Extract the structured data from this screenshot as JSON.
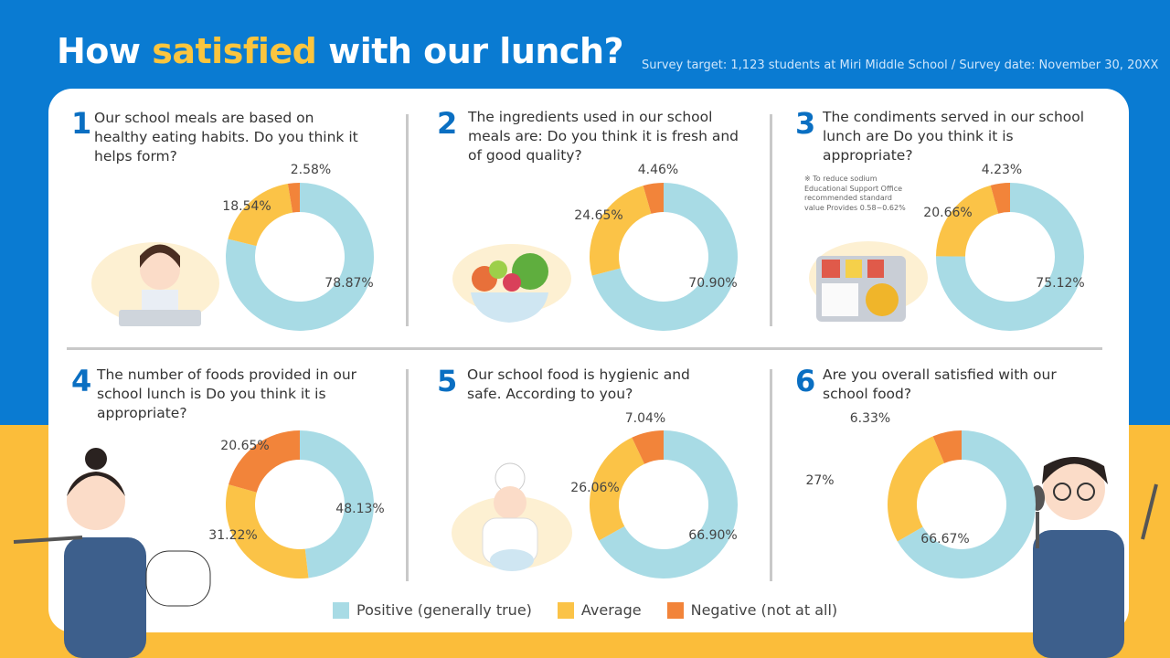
{
  "header": {
    "title_pre": "How ",
    "title_highlight": "satisfied",
    "title_post": " with our lunch?",
    "subtitle": "Survey target: 1,123 students at Miri Middle School / Survey date: November 30, 20XX"
  },
  "colors": {
    "positive": "#a8dbe5",
    "average": "#fbc347",
    "negative": "#f2843a",
    "accent": "#0a6fc2",
    "highlight": "#fbc53e"
  },
  "questions": [
    {
      "number": "1",
      "text": "Our school meals are based on healthy eating habits. Do you think it helps form?"
    },
    {
      "number": "2",
      "text": "The ingredients used in our school meals are: Do you think it is fresh and of good quality?"
    },
    {
      "number": "3",
      "text": "The condiments served in our school lunch are Do you think it is appropriate?",
      "note": "※ To reduce sodium Educational Support Office recommended standard value Provides 0.58~0.62%"
    },
    {
      "number": "4",
      "text": "The number of foods provided in our school lunch is Do you think it is appropriate?"
    },
    {
      "number": "5",
      "text": "Our school food is hygienic and safe. According to you?"
    },
    {
      "number": "6",
      "text": "Are you overall satisfied with our school food?"
    }
  ],
  "legend": {
    "positive": "Positive (generally true)",
    "average": "Average",
    "negative": "Negative (not at all)"
  },
  "chart_data": [
    {
      "type": "pie",
      "donut": true,
      "categories": [
        "Positive (generally true)",
        "Average",
        "Negative (not at all)"
      ],
      "values": [
        78.87,
        18.54,
        2.58
      ],
      "labels": [
        "78.87%",
        "18.54%",
        "2.58%"
      ]
    },
    {
      "type": "pie",
      "donut": true,
      "categories": [
        "Positive (generally true)",
        "Average",
        "Negative (not at all)"
      ],
      "values": [
        70.9,
        24.65,
        4.46
      ],
      "labels": [
        "70.90%",
        "24.65%",
        "4.46%"
      ]
    },
    {
      "type": "pie",
      "donut": true,
      "categories": [
        "Positive (generally true)",
        "Average",
        "Negative (not at all)"
      ],
      "values": [
        75.12,
        20.66,
        4.23
      ],
      "labels": [
        "75.12%",
        "20.66%",
        "4.23%"
      ]
    },
    {
      "type": "pie",
      "donut": true,
      "categories": [
        "Positive (generally true)",
        "Average",
        "Negative (not at all)"
      ],
      "values": [
        48.13,
        31.22,
        20.65
      ],
      "labels": [
        "48.13%",
        "31.22%",
        "20.65%"
      ]
    },
    {
      "type": "pie",
      "donut": true,
      "categories": [
        "Positive (generally true)",
        "Average",
        "Negative (not at all)"
      ],
      "values": [
        66.9,
        26.06,
        7.04
      ],
      "labels": [
        "66.90%",
        "26.06%",
        "7.04%"
      ]
    },
    {
      "type": "pie",
      "donut": true,
      "categories": [
        "Positive (generally true)",
        "Average",
        "Negative (not at all)"
      ],
      "values": [
        66.67,
        27,
        6.33
      ],
      "labels": [
        "66.67%",
        "27%",
        "6.33%"
      ]
    }
  ]
}
